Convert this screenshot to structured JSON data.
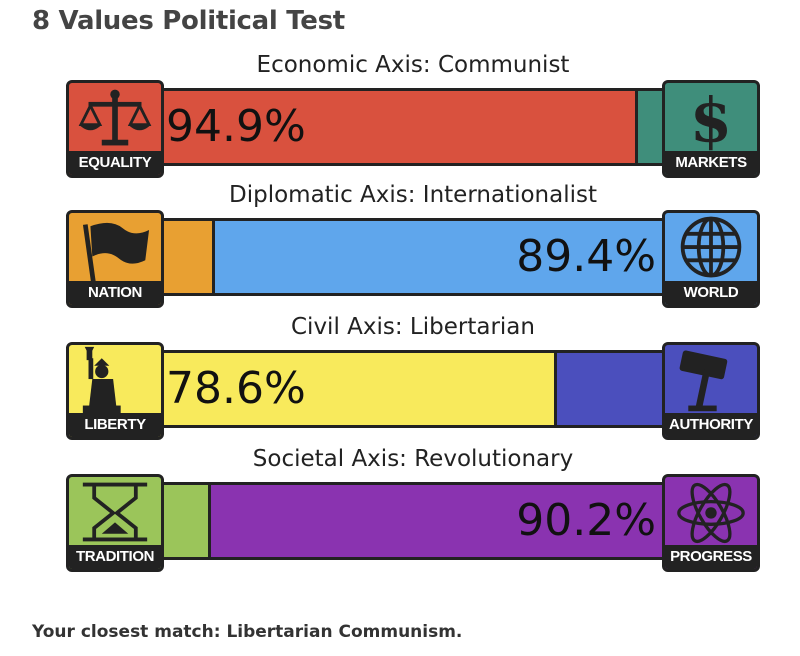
{
  "page": {
    "title": "8 Values Political Test",
    "closest_match": "Your closest match: Libertarian Communism."
  },
  "axes": [
    {
      "label": "Economic Axis: Communist",
      "left": {
        "name": "EQUALITY",
        "icon": "scales-icon",
        "color": "#d9513e"
      },
      "right": {
        "name": "MARKETS",
        "icon": "dollar-icon",
        "color": "#3f8e7b"
      },
      "dominant": "left",
      "value_text": "94.9%"
    },
    {
      "label": "Diplomatic Axis: Internationalist",
      "left": {
        "name": "NATION",
        "icon": "flag-icon",
        "color": "#e8a032"
      },
      "right": {
        "name": "WORLD",
        "icon": "globe-icon",
        "color": "#5fa6ec"
      },
      "dominant": "right",
      "value_text": "89.4%"
    },
    {
      "label": "Civil Axis: Libertarian",
      "left": {
        "name": "LIBERTY",
        "icon": "statue-of-liberty-icon",
        "color": "#f8ea5c"
      },
      "right": {
        "name": "AUTHORITY",
        "icon": "gavel-icon",
        "color": "#4b4fbd"
      },
      "dominant": "left",
      "value_text": "78.6%"
    },
    {
      "label": "Societal Axis: Revolutionary",
      "left": {
        "name": "TRADITION",
        "icon": "hourglass-icon",
        "color": "#9bc55a"
      },
      "right": {
        "name": "PROGRESS",
        "icon": "atom-icon",
        "color": "#8a33b0"
      },
      "dominant": "right",
      "value_text": "90.2%"
    }
  ],
  "chart_data": {
    "type": "bar",
    "categories": [
      "Economic Axis: Communist",
      "Diplomatic Axis: Internationalist",
      "Civil Axis: Libertarian",
      "Societal Axis: Revolutionary"
    ],
    "series": [
      {
        "name": "left",
        "values": [
          94.9,
          10.6,
          78.6,
          9.8
        ]
      },
      {
        "name": "right",
        "values": [
          5.1,
          89.4,
          21.4,
          90.2
        ]
      }
    ],
    "ylim": [
      0,
      100
    ]
  }
}
